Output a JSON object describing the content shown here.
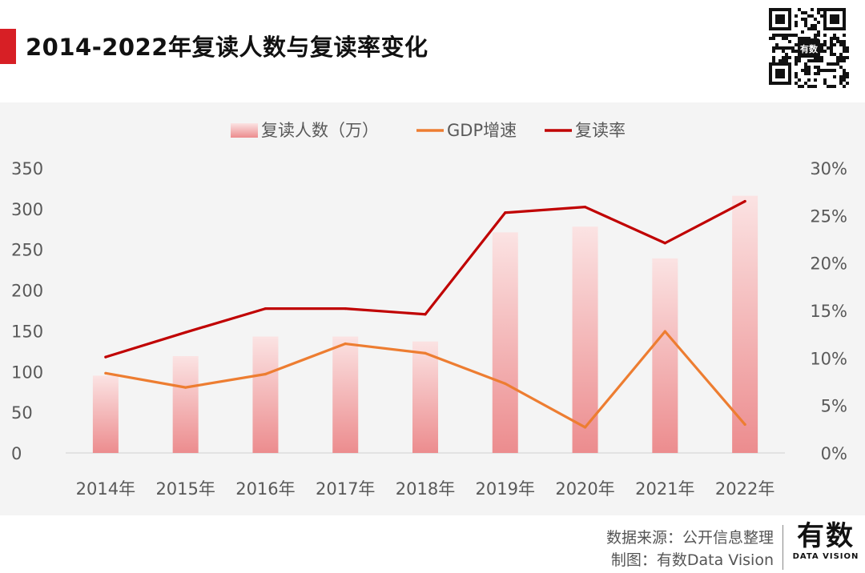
{
  "header": {
    "title": "2014-2022年复读人数与复读率变化"
  },
  "footer": {
    "source": "数据来源：公开信息整理",
    "credit": "制图：有数Data Vision",
    "logo_main": "有数",
    "logo_sub": "DATA VISION"
  },
  "qr_badge": "有数",
  "colors": {
    "accent": "#d71f25",
    "bar_top": "#f8dcdd",
    "bar_bottom": "#ec8c8e",
    "gdp_line": "#ed7d31",
    "rate_line": "#c00000"
  },
  "chart_data": {
    "type": "bar",
    "title": "2014-2022年复读人数与复读率变化",
    "categories": [
      "2014年",
      "2015年",
      "2016年",
      "2017年",
      "2018年",
      "2019年",
      "2020年",
      "2021年",
      "2022年"
    ],
    "y_left": {
      "ylim": [
        0,
        350
      ],
      "ticks": [
        "0",
        "50",
        "100",
        "150",
        "200",
        "250",
        "300",
        "350"
      ]
    },
    "y_right": {
      "ylim": [
        0,
        30
      ],
      "ticks": [
        "0%",
        "5%",
        "10%",
        "15%",
        "20%",
        "25%",
        "30%"
      ]
    },
    "legend": {
      "position": "top-center",
      "entries": [
        "复读人数（万）",
        "GDP增速",
        "复读率"
      ]
    },
    "series": [
      {
        "name": "复读人数（万）",
        "type": "bar",
        "axis": "left",
        "values": [
          95,
          119,
          143,
          143,
          137,
          271,
          278,
          239,
          316
        ]
      },
      {
        "name": "GDP增速",
        "type": "line",
        "axis": "right",
        "values": [
          8.4,
          6.9,
          8.3,
          11.5,
          10.5,
          7.3,
          2.7,
          12.8,
          3.0
        ]
      },
      {
        "name": "复读率",
        "type": "line",
        "axis": "right",
        "values": [
          10.1,
          12.7,
          15.2,
          15.2,
          14.6,
          25.3,
          25.9,
          22.1,
          26.5
        ]
      }
    ]
  }
}
